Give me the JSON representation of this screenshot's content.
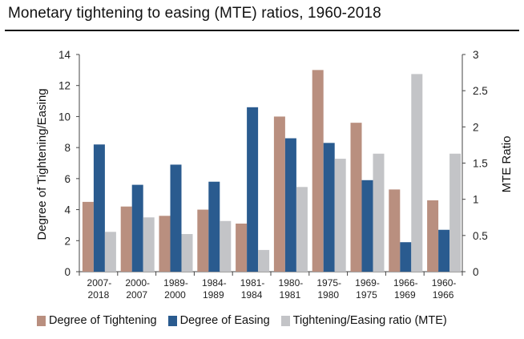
{
  "title": "Monetary tightening to easing (MTE) ratios, 1960-2018",
  "colors": {
    "tightening": "#b98f7f",
    "easing": "#2a5b8f",
    "ratio": "#c3c4c7"
  },
  "chart_data": {
    "type": "bar",
    "categories": [
      [
        "2007-",
        "2018"
      ],
      [
        "2000-",
        "2007"
      ],
      [
        "1989-",
        "2000"
      ],
      [
        "1984-",
        "1989"
      ],
      [
        "1981-",
        "1984"
      ],
      [
        "1980-",
        "1981"
      ],
      [
        "1975-",
        "1980"
      ],
      [
        "1969-",
        "1975"
      ],
      [
        "1966-",
        "1969"
      ],
      [
        "1960-",
        "1966"
      ]
    ],
    "series": [
      {
        "name": "Degree of Tightening",
        "axis": "left",
        "values": [
          4.5,
          4.2,
          3.6,
          4.0,
          3.1,
          10.0,
          13.0,
          9.6,
          5.3,
          4.6
        ]
      },
      {
        "name": "Degree of Easing",
        "axis": "left",
        "values": [
          8.2,
          5.6,
          6.9,
          5.8,
          10.6,
          8.6,
          8.3,
          5.9,
          1.9,
          2.7
        ]
      },
      {
        "name": "Tightening/Easing ratio (MTE)",
        "axis": "right",
        "values": [
          0.55,
          0.75,
          0.52,
          0.7,
          0.3,
          1.17,
          1.56,
          1.63,
          2.73,
          1.63
        ]
      }
    ],
    "ylabel": "Degree of Tightening/Easing",
    "y2label": "MTE Ratio",
    "ylim": [
      0,
      14
    ],
    "y2lim": [
      0,
      3
    ],
    "yticks": [
      "0",
      "2",
      "4",
      "6",
      "8",
      "10",
      "12",
      "14"
    ],
    "y2ticks": [
      "0",
      "0.5",
      "1",
      "1.5",
      "2",
      "2.5",
      "3"
    ],
    "grid": false,
    "legend_position": "bottom"
  }
}
